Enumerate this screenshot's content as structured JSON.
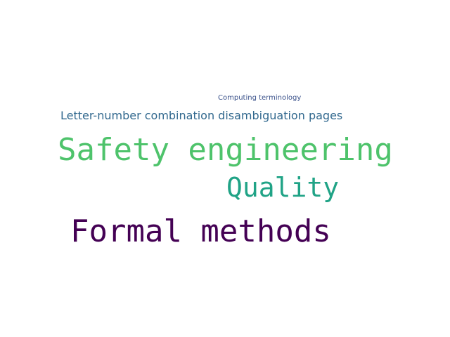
{
  "words": [
    {
      "text": "Computing terminology",
      "color": "#3b528b"
    },
    {
      "text": "Letter-number combination disambiguation pages",
      "color": "#31688e"
    },
    {
      "text": "Safety engineering",
      "color": "#4ec36b"
    },
    {
      "text": "Quality",
      "color": "#20a386"
    },
    {
      "text": "Formal methods",
      "color": "#440154"
    }
  ]
}
